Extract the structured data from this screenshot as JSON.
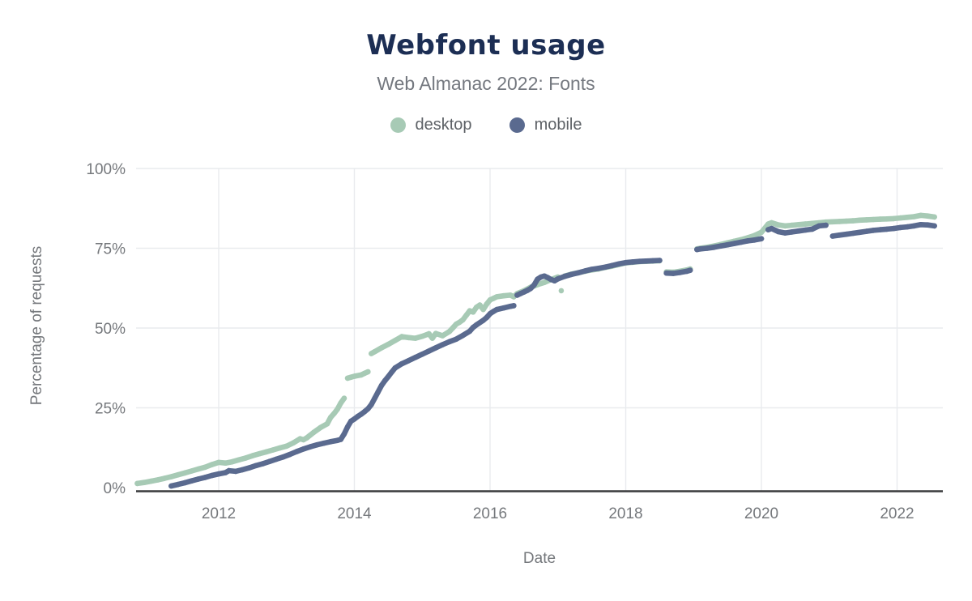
{
  "chart": {
    "title": "Webfont usage",
    "subtitle": "Web Almanac 2022: Fonts",
    "x_axis_label": "Date",
    "y_axis_label": "Percentage of requests",
    "legend": [
      {
        "label": "desktop",
        "color": "#a7cab5"
      },
      {
        "label": "mobile",
        "color": "#5a6a8f"
      }
    ]
  },
  "colors": {
    "title": "#1c2e54",
    "subtitle": "#74787f",
    "tick_text": "#75787c",
    "gridline": "#e9ebee",
    "axis_line": "#3a3b3d",
    "desktop": "#a7cab5",
    "mobile": "#5a6a8f",
    "background": "#ffffff"
  },
  "chart_data": {
    "type": "scatter",
    "title": "Webfont usage",
    "subtitle": "Web Almanac 2022: Fonts",
    "xlabel": "Date",
    "ylabel": "Percentage of requests",
    "xlim": [
      2010.75,
      2022.7
    ],
    "ylim": [
      0,
      100
    ],
    "grid": true,
    "legend_position": "top",
    "x_ticks": [
      2012,
      2014,
      2016,
      2018,
      2020,
      2022
    ],
    "y_ticks": [
      0,
      25,
      50,
      75,
      100
    ],
    "y_tick_suffix": "%",
    "series": [
      {
        "name": "desktop",
        "color": "#a7cab5",
        "points": [
          [
            2010.8,
            1.3
          ],
          [
            2010.9,
            1.6
          ],
          [
            2011.0,
            2.0
          ],
          [
            2011.1,
            2.4
          ],
          [
            2011.2,
            2.9
          ],
          [
            2011.3,
            3.4
          ],
          [
            2011.4,
            4.0
          ],
          [
            2011.5,
            4.6
          ],
          [
            2011.6,
            5.2
          ],
          [
            2011.7,
            5.8
          ],
          [
            2011.8,
            6.4
          ],
          [
            2011.9,
            7.2
          ],
          [
            2012.0,
            7.9
          ],
          [
            2012.1,
            7.7
          ],
          [
            2012.2,
            8.1
          ],
          [
            2012.3,
            8.7
          ],
          [
            2012.4,
            9.3
          ],
          [
            2012.5,
            10.0
          ],
          [
            2012.6,
            10.6
          ],
          [
            2012.7,
            11.2
          ],
          [
            2012.8,
            11.8
          ],
          [
            2012.9,
            12.4
          ],
          [
            2013.0,
            13.0
          ],
          [
            2013.1,
            14.0
          ],
          [
            2013.2,
            15.3
          ],
          [
            2013.25,
            15.0
          ],
          [
            2013.3,
            15.6
          ],
          [
            2013.4,
            17.3
          ],
          [
            2013.5,
            18.8
          ],
          [
            2013.6,
            20.0
          ],
          [
            2013.65,
            22.0
          ],
          [
            2013.7,
            23.2
          ],
          [
            2013.75,
            24.6
          ],
          [
            2013.8,
            26.5
          ],
          [
            2013.85,
            28.0
          ],
          [
            2013.9,
            34.3
          ],
          [
            2013.95,
            34.6
          ],
          [
            2014.0,
            34.9
          ],
          [
            2014.1,
            35.3
          ],
          [
            2014.15,
            35.8
          ],
          [
            2014.2,
            36.3
          ],
          [
            2014.25,
            42.0
          ],
          [
            2014.3,
            42.6
          ],
          [
            2014.4,
            43.8
          ],
          [
            2014.5,
            44.9
          ],
          [
            2014.6,
            46.1
          ],
          [
            2014.7,
            47.3
          ],
          [
            2014.8,
            47.0
          ],
          [
            2014.9,
            46.8
          ],
          [
            2015.0,
            47.4
          ],
          [
            2015.1,
            48.2
          ],
          [
            2015.15,
            46.8
          ],
          [
            2015.2,
            48.3
          ],
          [
            2015.3,
            47.6
          ],
          [
            2015.4,
            48.9
          ],
          [
            2015.45,
            50.0
          ],
          [
            2015.5,
            51.2
          ],
          [
            2015.55,
            51.8
          ],
          [
            2015.6,
            52.6
          ],
          [
            2015.65,
            54.0
          ],
          [
            2015.7,
            55.4
          ],
          [
            2015.75,
            55.0
          ],
          [
            2015.8,
            56.5
          ],
          [
            2015.85,
            57.2
          ],
          [
            2015.9,
            55.8
          ],
          [
            2015.95,
            57.5
          ],
          [
            2016.0,
            58.8
          ],
          [
            2016.05,
            59.3
          ],
          [
            2016.1,
            59.8
          ],
          [
            2016.2,
            60.1
          ],
          [
            2016.3,
            60.3
          ],
          [
            2016.35,
            59.8
          ],
          [
            2016.4,
            60.8
          ],
          [
            2016.5,
            61.7
          ],
          [
            2016.6,
            62.8
          ],
          [
            2016.65,
            63.2
          ],
          [
            2016.7,
            63.6
          ],
          [
            2016.8,
            64.3
          ],
          [
            2016.9,
            65.2
          ],
          [
            2017.0,
            66.0
          ],
          [
            2017.05,
            61.7
          ],
          [
            2017.1,
            66.3
          ],
          [
            2017.2,
            66.9
          ],
          [
            2017.3,
            67.3
          ],
          [
            2017.4,
            67.8
          ],
          [
            2017.5,
            68.2
          ],
          [
            2017.6,
            68.5
          ],
          [
            2017.7,
            69.0
          ],
          [
            2017.8,
            69.4
          ],
          [
            2017.9,
            69.9
          ],
          [
            2018.0,
            70.4
          ],
          [
            2018.1,
            70.6
          ],
          [
            2018.2,
            70.8
          ],
          [
            2018.3,
            70.9
          ],
          [
            2018.4,
            71.0
          ],
          [
            2018.5,
            71.1
          ],
          [
            2018.6,
            67.6
          ],
          [
            2018.7,
            67.5
          ],
          [
            2018.8,
            67.8
          ],
          [
            2018.9,
            68.2
          ],
          [
            2018.95,
            68.5
          ],
          [
            2019.05,
            74.8
          ],
          [
            2019.1,
            75.0
          ],
          [
            2019.2,
            75.3
          ],
          [
            2019.3,
            75.7
          ],
          [
            2019.4,
            76.2
          ],
          [
            2019.5,
            76.7
          ],
          [
            2019.6,
            77.2
          ],
          [
            2019.7,
            77.7
          ],
          [
            2019.8,
            78.3
          ],
          [
            2019.9,
            79.0
          ],
          [
            2020.0,
            80.0
          ],
          [
            2020.1,
            82.6
          ],
          [
            2020.15,
            83.0
          ],
          [
            2020.25,
            82.3
          ],
          [
            2020.35,
            82.0
          ],
          [
            2020.45,
            82.2
          ],
          [
            2020.55,
            82.4
          ],
          [
            2020.65,
            82.6
          ],
          [
            2020.75,
            82.8
          ],
          [
            2020.85,
            83.0
          ],
          [
            2020.95,
            83.2
          ],
          [
            2021.05,
            83.3
          ],
          [
            2021.15,
            83.4
          ],
          [
            2021.25,
            83.5
          ],
          [
            2021.35,
            83.6
          ],
          [
            2021.45,
            83.8
          ],
          [
            2021.55,
            83.9
          ],
          [
            2021.65,
            84.0
          ],
          [
            2021.75,
            84.1
          ],
          [
            2021.85,
            84.2
          ],
          [
            2021.95,
            84.3
          ],
          [
            2022.05,
            84.5
          ],
          [
            2022.15,
            84.7
          ],
          [
            2022.25,
            84.9
          ],
          [
            2022.35,
            85.3
          ],
          [
            2022.45,
            85.1
          ],
          [
            2022.55,
            84.8
          ]
        ]
      },
      {
        "name": "mobile",
        "color": "#5a6a8f",
        "points": [
          [
            2011.3,
            0.5
          ],
          [
            2011.4,
            1.0
          ],
          [
            2011.5,
            1.5
          ],
          [
            2011.6,
            2.1
          ],
          [
            2011.7,
            2.7
          ],
          [
            2011.8,
            3.2
          ],
          [
            2011.9,
            3.8
          ],
          [
            2012.0,
            4.3
          ],
          [
            2012.1,
            4.7
          ],
          [
            2012.15,
            5.3
          ],
          [
            2012.25,
            5.1
          ],
          [
            2012.35,
            5.6
          ],
          [
            2012.45,
            6.2
          ],
          [
            2012.55,
            6.9
          ],
          [
            2012.65,
            7.5
          ],
          [
            2012.75,
            8.2
          ],
          [
            2012.85,
            8.9
          ],
          [
            2012.95,
            9.6
          ],
          [
            2013.05,
            10.4
          ],
          [
            2013.15,
            11.3
          ],
          [
            2013.25,
            12.1
          ],
          [
            2013.35,
            12.8
          ],
          [
            2013.45,
            13.4
          ],
          [
            2013.55,
            13.9
          ],
          [
            2013.65,
            14.4
          ],
          [
            2013.75,
            14.8
          ],
          [
            2013.8,
            15.1
          ],
          [
            2013.85,
            16.8
          ],
          [
            2013.9,
            19.0
          ],
          [
            2013.95,
            20.8
          ],
          [
            2014.0,
            21.5
          ],
          [
            2014.05,
            22.3
          ],
          [
            2014.1,
            23.0
          ],
          [
            2014.15,
            23.8
          ],
          [
            2014.2,
            24.7
          ],
          [
            2014.25,
            26.0
          ],
          [
            2014.3,
            28.0
          ],
          [
            2014.35,
            30.0
          ],
          [
            2014.4,
            32.0
          ],
          [
            2014.45,
            33.5
          ],
          [
            2014.5,
            34.8
          ],
          [
            2014.55,
            36.2
          ],
          [
            2014.6,
            37.5
          ],
          [
            2014.7,
            38.8
          ],
          [
            2014.8,
            39.8
          ],
          [
            2014.9,
            40.8
          ],
          [
            2015.0,
            41.8
          ],
          [
            2015.1,
            42.8
          ],
          [
            2015.2,
            43.8
          ],
          [
            2015.3,
            44.8
          ],
          [
            2015.4,
            45.7
          ],
          [
            2015.5,
            46.5
          ],
          [
            2015.6,
            47.7
          ],
          [
            2015.7,
            49.0
          ],
          [
            2015.75,
            50.2
          ],
          [
            2015.8,
            51.0
          ],
          [
            2015.9,
            52.4
          ],
          [
            2015.95,
            53.3
          ],
          [
            2016.0,
            54.5
          ],
          [
            2016.05,
            55.2
          ],
          [
            2016.1,
            55.8
          ],
          [
            2016.2,
            56.3
          ],
          [
            2016.3,
            56.8
          ],
          [
            2016.35,
            57.0
          ],
          [
            2016.4,
            60.3
          ],
          [
            2016.45,
            60.8
          ],
          [
            2016.5,
            61.3
          ],
          [
            2016.55,
            61.8
          ],
          [
            2016.6,
            62.4
          ],
          [
            2016.65,
            63.5
          ],
          [
            2016.7,
            65.3
          ],
          [
            2016.75,
            66.0
          ],
          [
            2016.8,
            66.3
          ],
          [
            2016.85,
            65.8
          ],
          [
            2016.9,
            65.2
          ],
          [
            2016.95,
            64.8
          ],
          [
            2017.0,
            65.4
          ],
          [
            2017.1,
            66.2
          ],
          [
            2017.2,
            66.8
          ],
          [
            2017.3,
            67.3
          ],
          [
            2017.4,
            67.9
          ],
          [
            2017.5,
            68.4
          ],
          [
            2017.6,
            68.7
          ],
          [
            2017.7,
            69.1
          ],
          [
            2017.8,
            69.6
          ],
          [
            2017.9,
            70.1
          ],
          [
            2018.0,
            70.5
          ],
          [
            2018.1,
            70.7
          ],
          [
            2018.2,
            70.9
          ],
          [
            2018.3,
            71.0
          ],
          [
            2018.4,
            71.1
          ],
          [
            2018.5,
            71.2
          ],
          [
            2018.6,
            67.2
          ],
          [
            2018.7,
            67.1
          ],
          [
            2018.8,
            67.4
          ],
          [
            2018.9,
            67.8
          ],
          [
            2018.95,
            68.1
          ],
          [
            2019.05,
            74.6
          ],
          [
            2019.1,
            74.8
          ],
          [
            2019.2,
            75.0
          ],
          [
            2019.3,
            75.3
          ],
          [
            2019.4,
            75.7
          ],
          [
            2019.5,
            76.1
          ],
          [
            2019.6,
            76.5
          ],
          [
            2019.7,
            76.9
          ],
          [
            2019.8,
            77.3
          ],
          [
            2019.9,
            77.6
          ],
          [
            2020.0,
            78.0
          ],
          [
            2020.1,
            80.8
          ],
          [
            2020.15,
            81.2
          ],
          [
            2020.25,
            80.2
          ],
          [
            2020.35,
            79.8
          ],
          [
            2020.45,
            80.1
          ],
          [
            2020.55,
            80.4
          ],
          [
            2020.65,
            80.7
          ],
          [
            2020.75,
            81.0
          ],
          [
            2020.85,
            82.0
          ],
          [
            2020.95,
            82.2
          ],
          [
            2021.05,
            78.8
          ],
          [
            2021.15,
            79.1
          ],
          [
            2021.25,
            79.4
          ],
          [
            2021.35,
            79.7
          ],
          [
            2021.45,
            80.0
          ],
          [
            2021.55,
            80.3
          ],
          [
            2021.65,
            80.6
          ],
          [
            2021.75,
            80.8
          ],
          [
            2021.85,
            81.0
          ],
          [
            2021.95,
            81.2
          ],
          [
            2022.05,
            81.5
          ],
          [
            2022.15,
            81.7
          ],
          [
            2022.25,
            82.0
          ],
          [
            2022.35,
            82.4
          ],
          [
            2022.45,
            82.3
          ],
          [
            2022.55,
            82.0
          ]
        ]
      }
    ]
  }
}
